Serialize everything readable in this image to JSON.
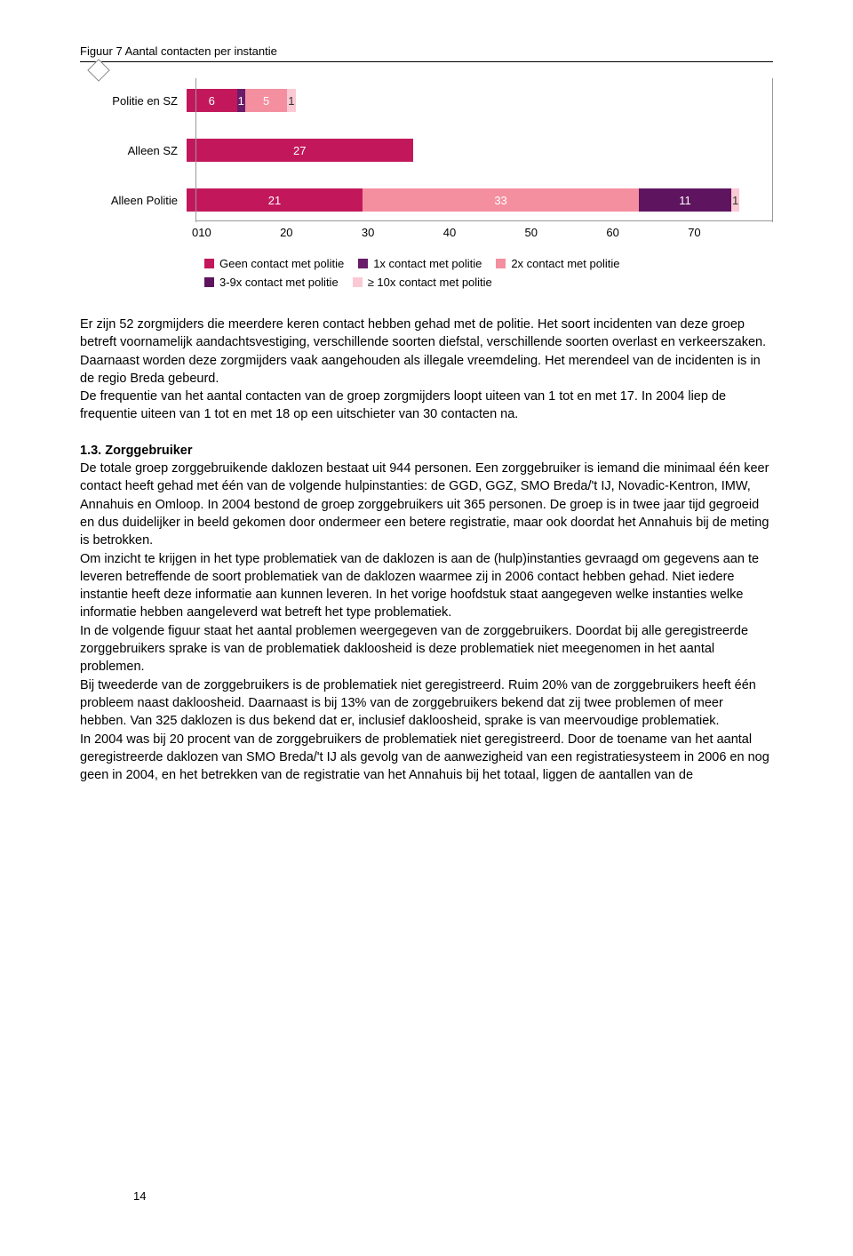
{
  "figure": {
    "title": "Figuur 7 Aantal contacten per instantie",
    "x_max": 70,
    "x_ticks": [
      0,
      10,
      20,
      30,
      40,
      50,
      60,
      70
    ],
    "colors": {
      "geen": "#c2185b",
      "c1x": "#6a1b6a",
      "c2x": "#f48fa0",
      "c3_9x": "#5e145e",
      "c10x": "#fbc9d4"
    },
    "series": [
      {
        "label": "Politie en SZ",
        "segments": [
          {
            "key": "geen",
            "value": 6,
            "text_color": "#fff"
          },
          {
            "key": "c1x",
            "value": 1,
            "text_color": "#fff"
          },
          {
            "key": "c2x",
            "value": 5,
            "text_color": "#fff"
          },
          {
            "key": "c10x",
            "value": 1,
            "text_color": "#333"
          }
        ]
      },
      {
        "label": "Alleen SZ",
        "segments": [
          {
            "key": "geen",
            "value": 27,
            "text_color": "#fff"
          }
        ]
      },
      {
        "label": "Alleen Politie",
        "segments": [
          {
            "key": "geen",
            "value": 21,
            "text_color": "#fff"
          },
          {
            "key": "c2x",
            "value": 33,
            "text_color": "#fff"
          },
          {
            "key": "c3_9x",
            "value": 11,
            "text_color": "#fff"
          },
          {
            "key": "c10x",
            "value": 1,
            "text_color": "#333"
          }
        ]
      }
    ],
    "legend": {
      "row1": [
        {
          "key": "geen",
          "label": "Geen contact met politie"
        },
        {
          "key": "c1x",
          "label": "1x contact met politie"
        },
        {
          "key": "c2x",
          "label": "2x contact met politie"
        }
      ],
      "row2": [
        {
          "key": "c3_9x",
          "label": "3-9x contact met politie"
        },
        {
          "key": "c10x",
          "label": "≥ 10x contact met politie"
        }
      ]
    }
  },
  "body": {
    "p1": "Er zijn 52 zorgmijders die meerdere keren contact hebben gehad met de politie. Het soort incidenten van deze groep betreft voornamelijk aandachtsvestiging, verschillende soorten diefstal, verschillende soorten overlast en verkeerszaken. Daarnaast worden deze zorgmijders vaak aangehouden als illegale vreemdeling. Het merendeel van de incidenten is in de regio Breda gebeurd.",
    "p2": "De frequentie van het aantal contacten van de groep zorgmijders loopt uiteen van 1 tot en met 17. In 2004 liep de frequentie uiteen van 1 tot en met 18 op een uitschieter van 30 contacten na.",
    "heading": "1.3. Zorggebruiker",
    "p3": "De totale groep zorggebruikende daklozen bestaat uit 944 personen. Een zorggebruiker is iemand die minimaal één keer contact heeft gehad met één van de volgende hulpinstanties: de GGD, GGZ, SMO Breda/'t IJ, Novadic-Kentron, IMW, Annahuis en Omloop. In 2004 bestond de groep zorggebruikers uit 365 personen. De groep is in twee jaar tijd gegroeid en dus duidelijker in beeld gekomen door ondermeer een betere registratie, maar ook doordat het Annahuis bij de meting is betrokken.",
    "p4": "Om inzicht te krijgen in het type problematiek van de daklozen is aan de (hulp)instanties gevraagd om gegevens aan te leveren betreffende de soort problematiek van de daklozen waarmee zij in 2006 contact hebben gehad. Niet iedere instantie heeft deze informatie aan kunnen leveren. In het vorige hoofdstuk staat aangegeven welke instanties welke informatie hebben aangeleverd wat betreft het type problematiek.",
    "p5": "In de volgende figuur staat het aantal problemen weergegeven van de zorggebruikers. Doordat bij alle geregistreerde zorggebruikers sprake is van de problematiek dakloosheid is deze problematiek niet meegenomen in het aantal problemen.",
    "p6": "Bij tweederde van de zorggebruikers is de problematiek niet geregistreerd. Ruim 20% van de zorggebruikers heeft één probleem naast dakloosheid. Daarnaast is bij 13% van de zorggebruikers bekend dat zij twee problemen of meer hebben. Van 325 daklozen is dus bekend dat er, inclusief dakloosheid, sprake is van meervoudige problematiek.",
    "p7": "In 2004 was bij 20 procent van de zorggebruikers de problematiek niet geregistreerd. Door de toename van het aantal geregistreerde daklozen van SMO Breda/'t IJ als gevolg van de aanwezigheid van een registratiesysteem in 2006 en nog geen in 2004, en het betrekken van de registratie van het Annahuis bij het totaal, liggen de aantallen van de"
  },
  "page_number": "14"
}
